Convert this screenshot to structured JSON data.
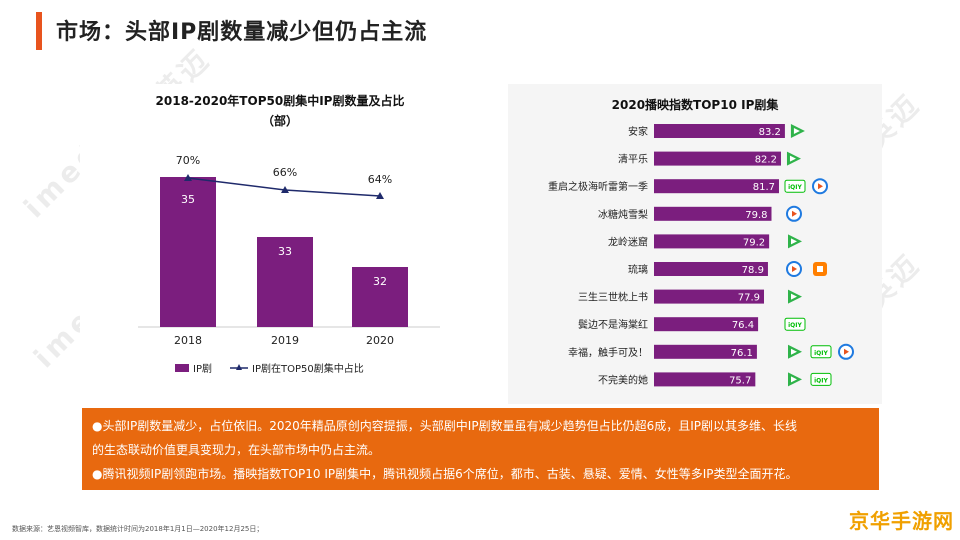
{
  "title": "市场：头部IP剧数量减少但仍占主流",
  "watermark": "imedia 艾瑞 英迈",
  "left_chart": {
    "title_line1": "2018-2020年TOP50剧集中IP剧数量及占比",
    "title_line2": "（部）",
    "legend_bar": "IP剧",
    "legend_line": "IP剧在TOP50剧集中占比"
  },
  "right_chart": {
    "title": "2020播映指数TOP10 IP剧集"
  },
  "chart_data": [
    {
      "type": "bar",
      "title": "2018-2020年TOP50剧集中IP剧数量及占比（部）",
      "categories": [
        "2018",
        "2019",
        "2020"
      ],
      "series": [
        {
          "name": "IP剧",
          "type": "bar",
          "values": [
            35,
            33,
            32
          ],
          "color": "#7b1e7e"
        },
        {
          "name": "IP剧在TOP50剧集中占比",
          "type": "line",
          "values": [
            70,
            66,
            64
          ],
          "unit": "%",
          "color": "#1f2a6b"
        }
      ]
    },
    {
      "type": "bar",
      "orientation": "horizontal",
      "title": "2020播映指数TOP10 IP剧集",
      "categories": [
        "安家",
        "清平乐",
        "重启之极海听雷第一季",
        "冰糖炖雪梨",
        "龙岭迷窟",
        "琉璃",
        "三生三世枕上书",
        "鬓边不是海棠红",
        "幸福，触手可及！",
        "不完美的她"
      ],
      "values": [
        83.2,
        82.2,
        81.7,
        79.8,
        79.2,
        78.9,
        77.9,
        76.4,
        76.1,
        75.7
      ],
      "xlim": [
        50,
        85
      ],
      "color": "#7b1e7e",
      "platforms": [
        [
          "tencent"
        ],
        [
          "tencent"
        ],
        [
          "iqiyi",
          "youku"
        ],
        [
          "youku"
        ],
        [
          "tencent"
        ],
        [
          "youku",
          "mango"
        ],
        [
          "tencent"
        ],
        [
          "iqiyi"
        ],
        [
          "tencent",
          "iqiyi",
          "youku"
        ],
        [
          "tencent",
          "iqiyi"
        ]
      ]
    }
  ],
  "platform_icons": {
    "tencent": {
      "label": "",
      "color": "#2fb34a"
    },
    "iqiyi": {
      "label": "iQIY",
      "color": "#00be06"
    },
    "youku": {
      "label": "",
      "color": "#1f7ae0"
    },
    "mango": {
      "label": "",
      "color": "#ff7f00"
    }
  },
  "callout": {
    "line1": "●头部IP剧数量减少，占位依旧。2020年精品原创内容提振，头部剧中IP剧数量虽有减少趋势但占比仍超6成，且IP剧以其多维、长线",
    "line2": "的生态联动价值更具变现力，在头部市场中仍占主流。",
    "line3": "●腾讯视频IP剧领跑市场。播映指数TOP10 IP剧集中，腾讯视频占据6个席位，都市、古装、悬疑、爱情、女性等多IP类型全面开花。"
  },
  "footnote": "数据来源：艺恩视频智库，数据统计时间为2018年1月1日—2020年12月25日；",
  "corner_logo": "京华手游网"
}
